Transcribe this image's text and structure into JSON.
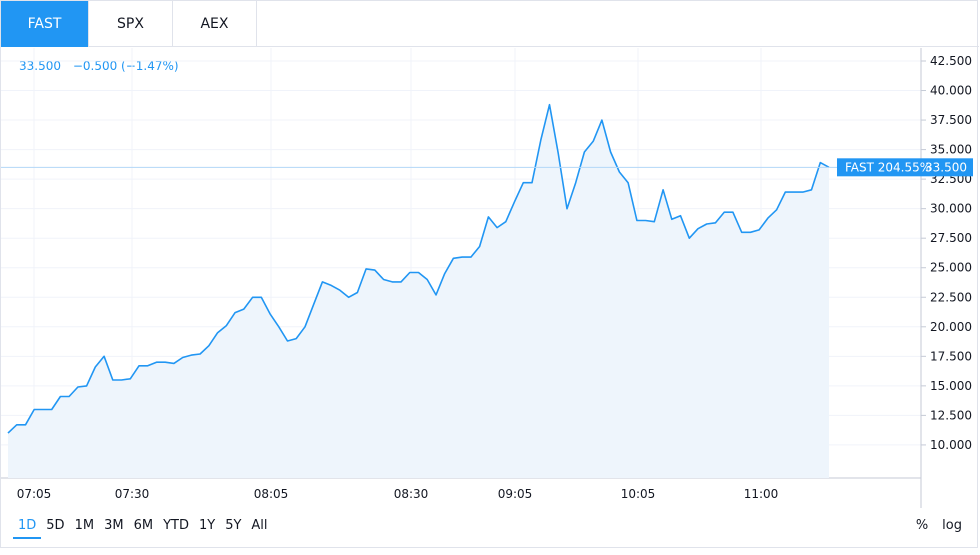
{
  "tabs": [
    {
      "label": "FAST",
      "active": true
    },
    {
      "label": "SPX",
      "active": false
    },
    {
      "label": "AEX",
      "active": false
    }
  ],
  "legend": {
    "value": "33.500",
    "change": "−0.500 (−1.47%)"
  },
  "price_label": {
    "name": "FAST 204.55%",
    "value": "33.500"
  },
  "ranges": [
    "1D",
    "5D",
    "1M",
    "3M",
    "6M",
    "YTD",
    "1Y",
    "5Y",
    "All"
  ],
  "active_range": "1D",
  "scale_buttons": [
    "%",
    "log"
  ],
  "colors": {
    "line": "#2196f3",
    "area_fill": "#eef5fc",
    "grid": "#f0f3fa",
    "accent": "#2196f3"
  },
  "chart_data": {
    "type": "area",
    "x_ticks": [
      "07:05",
      "07:30",
      "08:05",
      "08:30",
      "09:05",
      "10:05",
      "11:00"
    ],
    "y_ticks": [
      "10.000",
      "12.500",
      "15.000",
      "17.500",
      "20.000",
      "22.500",
      "25.000",
      "27.500",
      "30.000",
      "32.500",
      "35.000",
      "37.500",
      "40.000",
      "42.500"
    ],
    "ylim": [
      7.2,
      43.6
    ],
    "grid": true,
    "series": [
      {
        "values": [
          11.0,
          11.7,
          11.7,
          13.0,
          13.0,
          13.0,
          14.1,
          14.1,
          14.9,
          15.0,
          16.6,
          17.5,
          15.5,
          15.5,
          15.6,
          16.7,
          16.7,
          17.0,
          17.0,
          16.9,
          17.4,
          17.6,
          17.7,
          18.4,
          19.5,
          20.1,
          21.2,
          21.5,
          22.5,
          22.5,
          21.1,
          20.0,
          18.8,
          19.0,
          20.0,
          21.9,
          23.8,
          23.5,
          23.1,
          22.5,
          22.9,
          24.9,
          24.8,
          24.0,
          23.8,
          23.8,
          24.6,
          24.6,
          24.0,
          22.7,
          24.5,
          25.8,
          25.9,
          25.9,
          26.8,
          29.3,
          28.4,
          28.9,
          30.6,
          32.2,
          32.2,
          35.8,
          38.8,
          34.7,
          30.0,
          32.2,
          34.8,
          35.7,
          37.5,
          34.8,
          33.1,
          32.2,
          29.0,
          29.0,
          28.9,
          31.6,
          29.1,
          29.4,
          27.5,
          28.3,
          28.7,
          28.8,
          29.7,
          29.7,
          28.0,
          28.0,
          28.2,
          29.2,
          29.9,
          31.4,
          31.4,
          31.4,
          31.6,
          33.9,
          33.5
        ]
      }
    ]
  }
}
